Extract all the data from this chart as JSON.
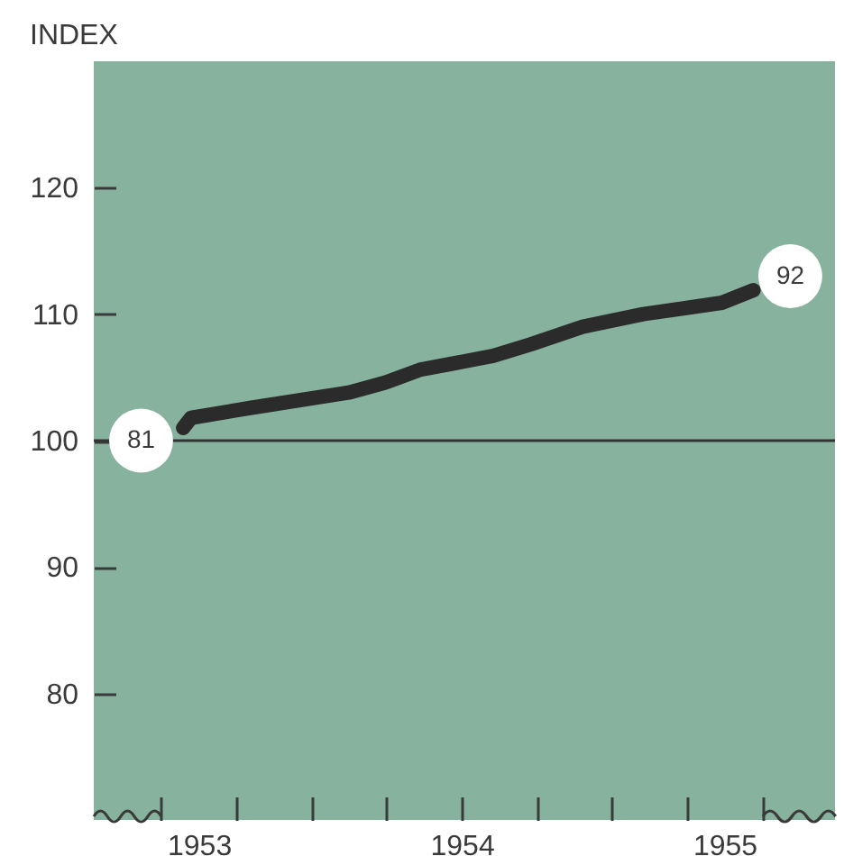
{
  "chart_data": {
    "type": "line",
    "ylabel": "INDEX",
    "x": [
      1952.94,
      1952.97,
      1953.2,
      1953.57,
      1953.71,
      1953.84,
      1954.12,
      1954.26,
      1954.46,
      1954.69,
      1954.99,
      1955.11
    ],
    "series": [
      {
        "color": "#2b2b2b",
        "values": [
          101.0,
          101.8,
          102.6,
          103.8,
          104.6,
          105.6,
          106.7,
          107.6,
          109.0,
          110.0,
          110.9,
          111.9
        ]
      }
    ],
    "xlim": [
      1952.6,
      1955.42
    ],
    "ylim": [
      70,
      130
    ],
    "xticks": [
      {
        "value": 1952.857,
        "label": null
      },
      {
        "value": 1953,
        "label": "1953"
      },
      {
        "value": 1953.143,
        "label": null
      },
      {
        "value": 1953.429,
        "label": null
      },
      {
        "value": 1953.714,
        "label": null
      },
      1954,
      {
        "value": 1954.286,
        "label": null
      },
      {
        "value": 1954.571,
        "label": null
      },
      {
        "value": 1954.857,
        "label": null
      },
      {
        "value": 1955,
        "label": "1955"
      },
      {
        "value": 1955.143,
        "label": null
      }
    ],
    "yticks": [
      80,
      90,
      100,
      110,
      120
    ],
    "ref_lines": [
      {
        "axis": "y",
        "value": 100,
        "color": "#333333"
      }
    ],
    "annotations": [
      {
        "text": "81",
        "x": 1952.78,
        "y": 100
      },
      {
        "text": "92",
        "x": 1955.25,
        "y": 113
      }
    ]
  }
}
